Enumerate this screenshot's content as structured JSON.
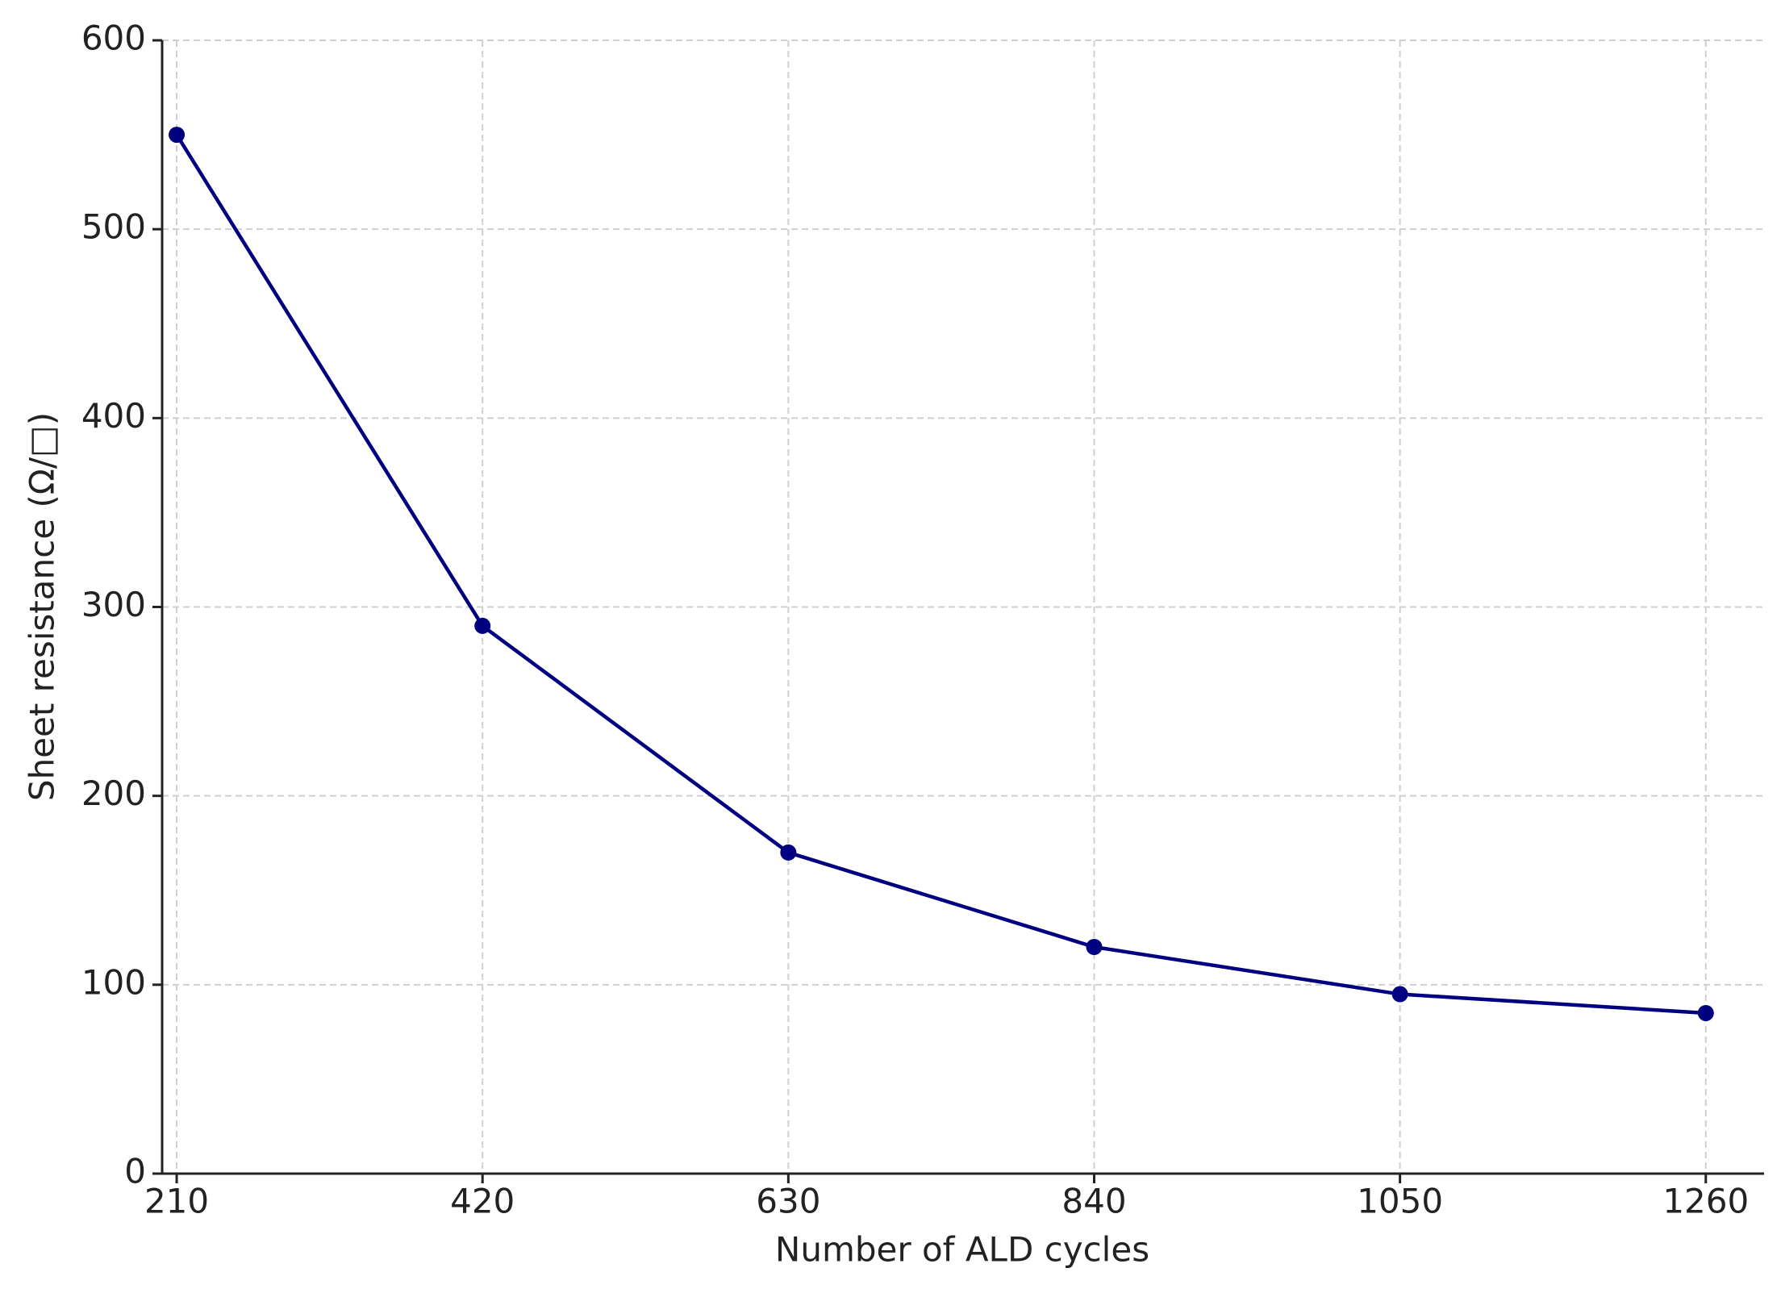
{
  "chart_data": {
    "type": "line",
    "x_label": "Number of ALD cycles",
    "y_label": "Sheet resistance (Ω/□)",
    "x": [
      210,
      420,
      630,
      840,
      1050,
      1260
    ],
    "series": [
      {
        "color": "#000080",
        "values": [
          550,
          290,
          170,
          120,
          95,
          85
        ]
      }
    ],
    "xlim": [
      200,
      1300
    ],
    "xticks": [
      210,
      420,
      630,
      840,
      1050,
      1260
    ],
    "ylim": [
      0,
      600
    ],
    "yticks": [
      0,
      100,
      200,
      300,
      400,
      500,
      600
    ],
    "grid": true
  }
}
